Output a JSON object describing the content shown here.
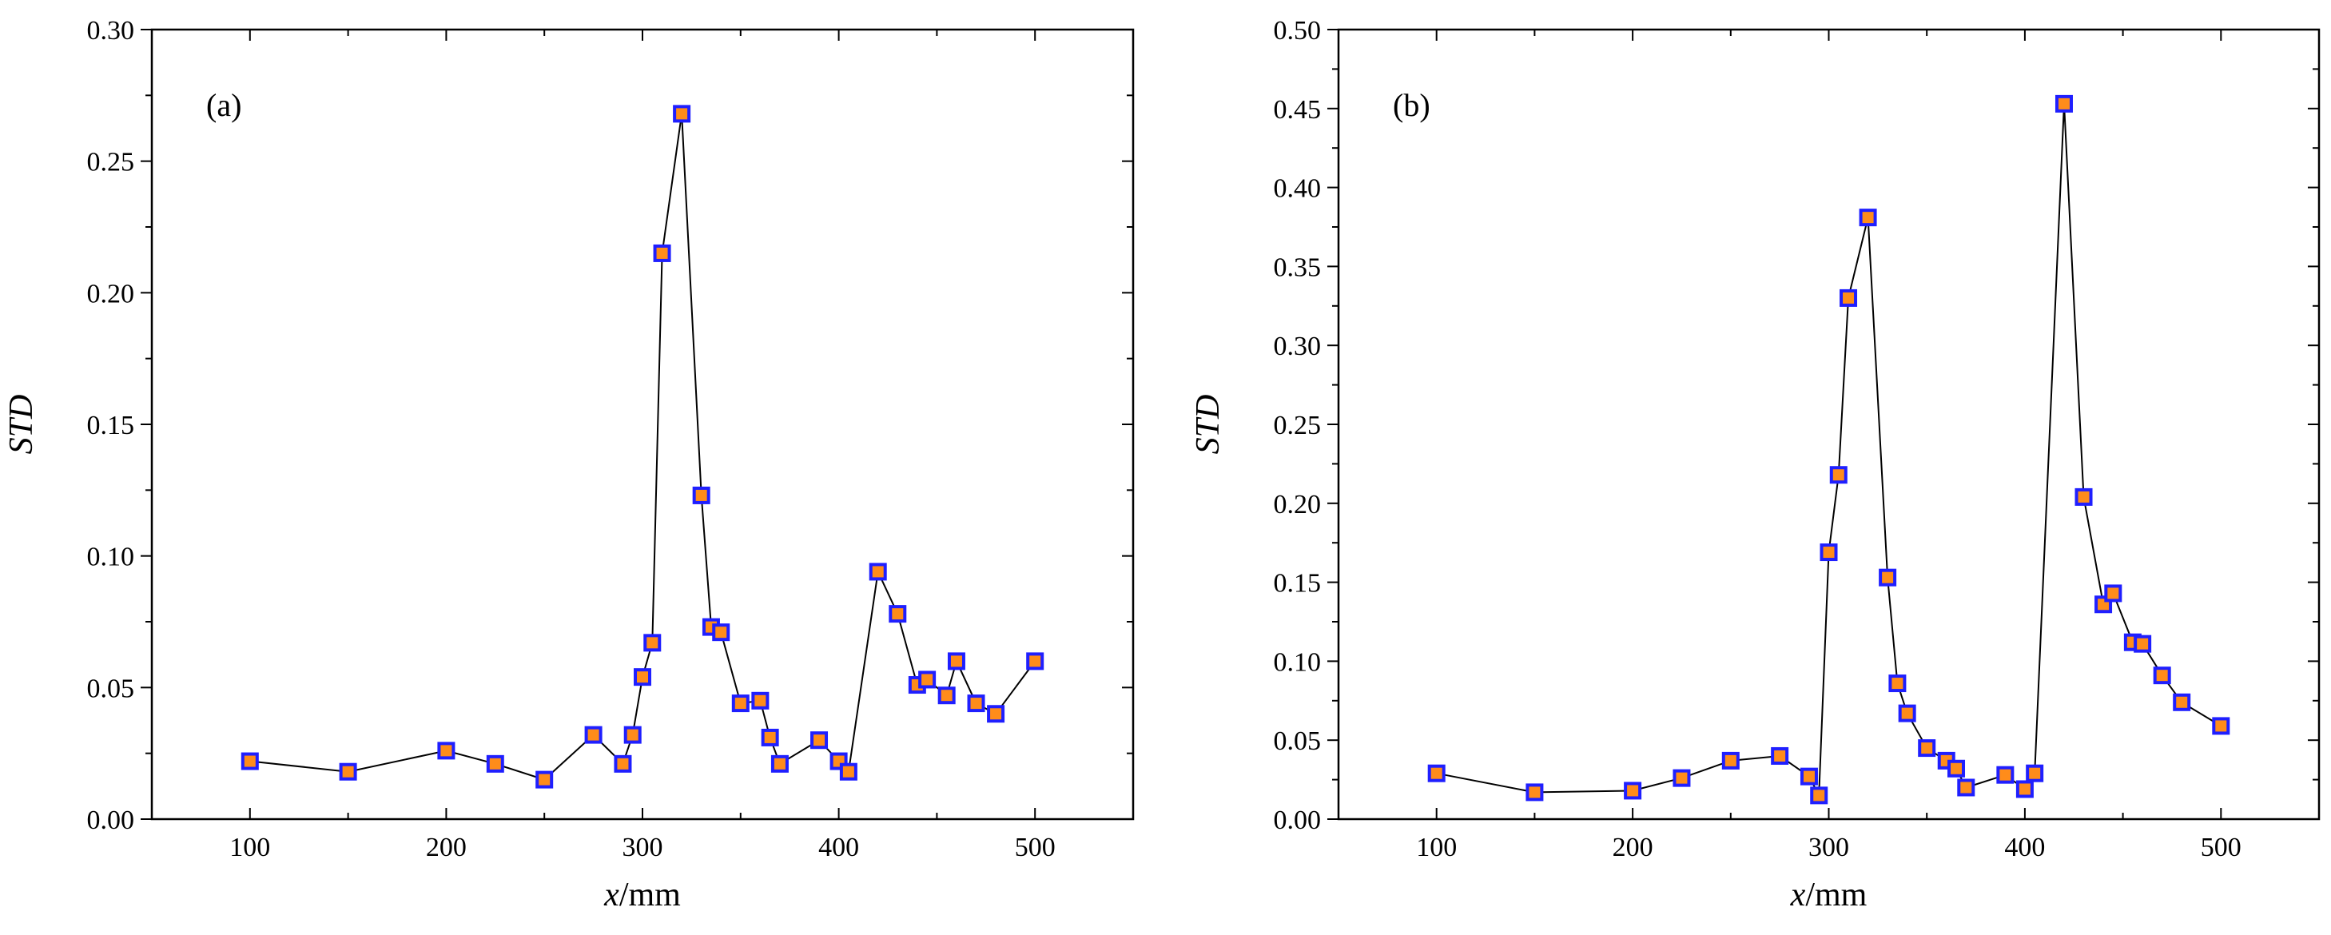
{
  "chart_data": [
    {
      "type": "line",
      "panel_label": "(a)",
      "xlabel_italic": "x",
      "xlabel_unit": "/mm",
      "ylabel": "STD",
      "xlim": [
        50,
        550
      ],
      "ylim": [
        0,
        0.3
      ],
      "xticks": [
        100,
        200,
        300,
        400,
        500
      ],
      "yticks": [
        0.0,
        0.05,
        0.1,
        0.15,
        0.2,
        0.25,
        0.3
      ],
      "ytick_labels": [
        "0.00",
        "0.05",
        "0.10",
        "0.15",
        "0.20",
        "0.25",
        "0.30"
      ],
      "marker_fill": "#ff8c1a",
      "marker_edge": "#1f1fff",
      "line_color": "#000000",
      "series": [
        {
          "name": "STD",
          "x": [
            100,
            150,
            200,
            225,
            250,
            275,
            290,
            295,
            300,
            305,
            310,
            320,
            330,
            335,
            340,
            350,
            360,
            365,
            370,
            390,
            400,
            405,
            420,
            430,
            440,
            445,
            455,
            460,
            470,
            480,
            500
          ],
          "y": [
            0.022,
            0.018,
            0.026,
            0.021,
            0.015,
            0.032,
            0.021,
            0.032,
            0.054,
            0.067,
            0.215,
            0.268,
            0.123,
            0.073,
            0.071,
            0.044,
            0.045,
            0.031,
            0.021,
            0.03,
            0.022,
            0.018,
            0.094,
            0.078,
            0.051,
            0.053,
            0.047,
            0.06,
            0.044,
            0.04,
            0.06
          ]
        }
      ]
    },
    {
      "type": "line",
      "panel_label": "(b)",
      "xlabel_italic": "x",
      "xlabel_unit": "/mm",
      "ylabel": "STD",
      "xlim": [
        50,
        550
      ],
      "ylim": [
        0,
        0.5
      ],
      "xticks": [
        100,
        200,
        300,
        400,
        500
      ],
      "yticks": [
        0.0,
        0.05,
        0.1,
        0.15,
        0.2,
        0.25,
        0.3,
        0.35,
        0.4,
        0.45,
        0.5
      ],
      "ytick_labels": [
        "0.00",
        "0.05",
        "0.10",
        "0.15",
        "0.20",
        "0.25",
        "0.30",
        "0.35",
        "0.40",
        "0.45",
        "0.50"
      ],
      "marker_fill": "#ff8c1a",
      "marker_edge": "#1f1fff",
      "line_color": "#000000",
      "series": [
        {
          "name": "STD",
          "x": [
            100,
            150,
            200,
            225,
            250,
            275,
            290,
            295,
            300,
            305,
            310,
            320,
            330,
            335,
            340,
            350,
            360,
            365,
            370,
            390,
            400,
            405,
            420,
            430,
            440,
            445,
            455,
            460,
            470,
            480,
            500
          ],
          "y": [
            0.029,
            0.017,
            0.018,
            0.026,
            0.037,
            0.04,
            0.027,
            0.015,
            0.169,
            0.218,
            0.33,
            0.381,
            0.153,
            0.086,
            0.067,
            0.045,
            0.037,
            0.032,
            0.02,
            0.028,
            0.019,
            0.029,
            0.453,
            0.204,
            0.136,
            0.143,
            0.112,
            0.111,
            0.091,
            0.074,
            0.059
          ]
        }
      ]
    }
  ]
}
